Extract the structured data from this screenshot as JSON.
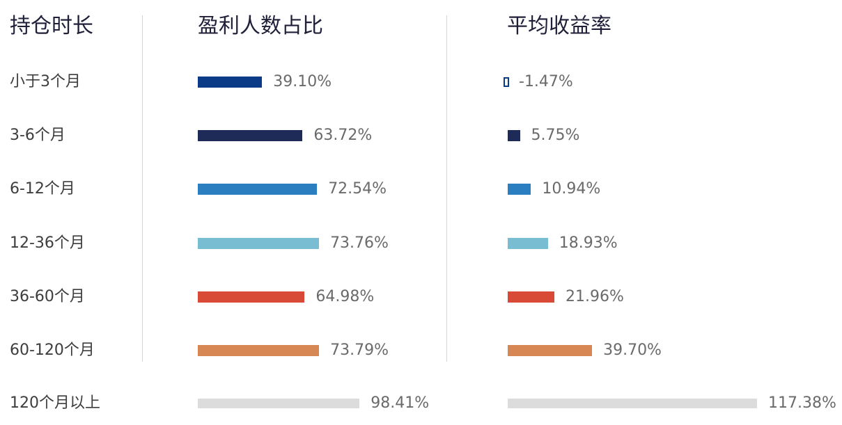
{
  "headers": {
    "duration": "持仓时长",
    "profit_ratio": "盈利人数占比",
    "avg_return": "平均收益率"
  },
  "chart_data": [
    {
      "type": "bar",
      "orientation": "horizontal",
      "title": "盈利人数占比",
      "categories": [
        "小于3个月",
        "3-6个月",
        "6-12个月",
        "12-36个月",
        "36-60个月",
        "60-120个月",
        "120个月以上"
      ],
      "values": [
        39.1,
        63.72,
        72.54,
        73.76,
        64.98,
        73.79,
        98.41
      ],
      "labels": [
        "39.10%",
        "63.72%",
        "72.54%",
        "73.76%",
        "64.98%",
        "73.79%",
        "98.41%"
      ],
      "colors": [
        "#0b3a86",
        "#1e2b58",
        "#2b7fc0",
        "#78bdd2",
        "#d84a36",
        "#d68754",
        "#dcdcdc"
      ],
      "unit": "%"
    },
    {
      "type": "bar",
      "orientation": "horizontal",
      "title": "平均收益率",
      "categories": [
        "小于3个月",
        "3-6个月",
        "6-12个月",
        "12-36个月",
        "36-60个月",
        "60-120个月",
        "120个月以上"
      ],
      "values": [
        -1.47,
        5.75,
        10.94,
        18.93,
        21.96,
        39.7,
        117.38
      ],
      "labels": [
        "-1.47%",
        "5.75%",
        "10.94%",
        "18.93%",
        "21.96%",
        "39.70%",
        "117.38%"
      ],
      "colors": [
        "#0b3a86",
        "#1e2b58",
        "#2b7fc0",
        "#78bdd2",
        "#d84a36",
        "#d68754",
        "#dcdcdc"
      ],
      "unit": "%"
    }
  ]
}
